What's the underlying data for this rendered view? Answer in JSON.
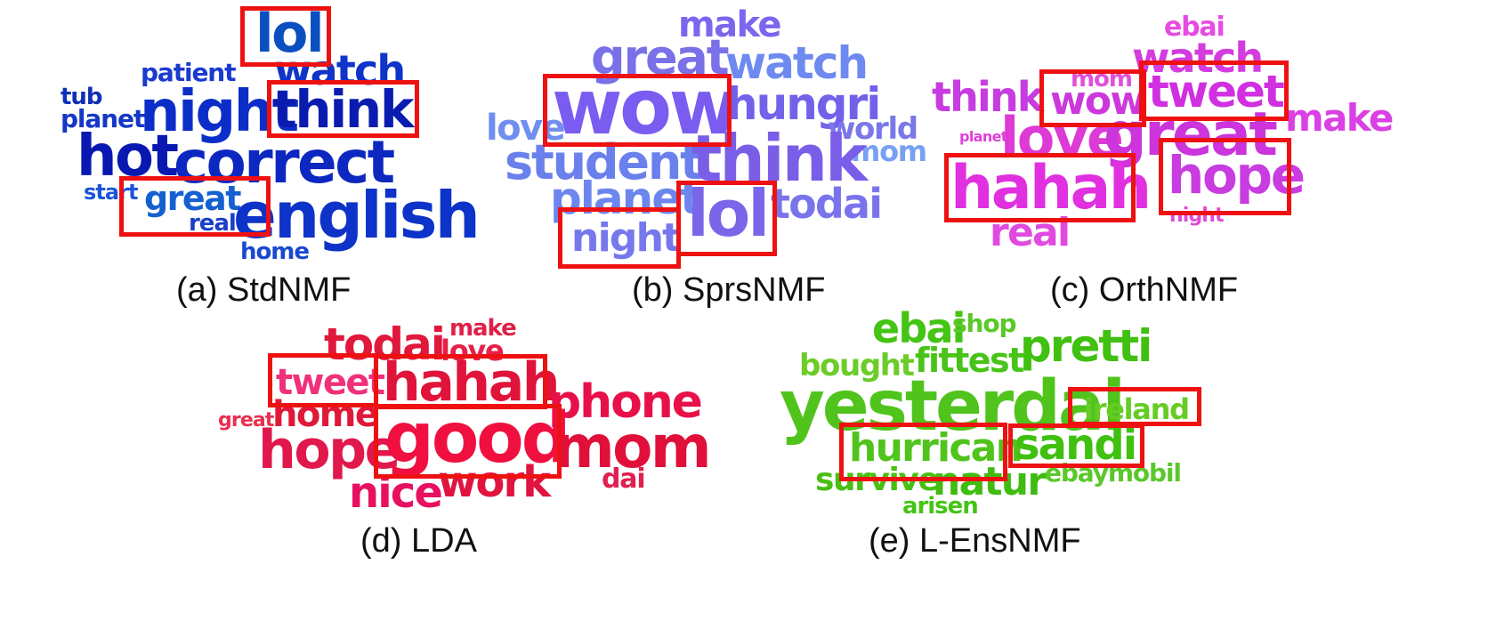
{
  "panels": [
    {
      "caption": "(a) StdNMF",
      "words": [
        {
          "text": "lol",
          "color": "#0a4fc0"
        },
        {
          "text": "watch",
          "color": "#1034c8"
        },
        {
          "text": "patient",
          "color": "#1a3ad0"
        },
        {
          "text": "tub",
          "color": "#0f2fb8"
        },
        {
          "text": "planet",
          "color": "#1437c8"
        },
        {
          "text": "night",
          "color": "#0c2ec8"
        },
        {
          "text": "think",
          "color": "#0a1cb0"
        },
        {
          "text": "hot",
          "color": "#0818b0"
        },
        {
          "text": "correct",
          "color": "#0d28c0"
        },
        {
          "text": "start",
          "color": "#1a55d8"
        },
        {
          "text": "great",
          "color": "#1560d0"
        },
        {
          "text": "real",
          "color": "#1a40c8"
        },
        {
          "text": "english",
          "color": "#0e33c8"
        },
        {
          "text": "home",
          "color": "#1a48d0"
        }
      ]
    },
    {
      "caption": "(b) SprsNMF",
      "words": [
        {
          "text": "make",
          "color": "#7b66ee"
        },
        {
          "text": "great",
          "color": "#7a70e8"
        },
        {
          "text": "watch",
          "color": "#6e8af0"
        },
        {
          "text": "wow",
          "color": "#7a5cf0"
        },
        {
          "text": "hungri",
          "color": "#7262ea"
        },
        {
          "text": "love",
          "color": "#6f8ef0"
        },
        {
          "text": "world",
          "color": "#7a78e8"
        },
        {
          "text": "mom",
          "color": "#78a0f2"
        },
        {
          "text": "student",
          "color": "#6a80ec"
        },
        {
          "text": "think",
          "color": "#7a5ee8"
        },
        {
          "text": "planet",
          "color": "#6c86ee"
        },
        {
          "text": "lol",
          "color": "#7a66e8"
        },
        {
          "text": "todai",
          "color": "#7a74ec"
        },
        {
          "text": "night",
          "color": "#7678ec"
        }
      ]
    },
    {
      "caption": "(c) OrthNMF",
      "words": [
        {
          "text": "ebai",
          "color": "#e84ae4"
        },
        {
          "text": "watch",
          "color": "#d43ce0"
        },
        {
          "text": "think",
          "color": "#c63ce0"
        },
        {
          "text": "mom",
          "color": "#e050d8"
        },
        {
          "text": "wow",
          "color": "#cc38dc"
        },
        {
          "text": "tweet",
          "color": "#d030e0"
        },
        {
          "text": "make",
          "color": "#da40e4"
        },
        {
          "text": "planet",
          "color": "#e040d8"
        },
        {
          "text": "love",
          "color": "#dd3ad6"
        },
        {
          "text": "great",
          "color": "#cc34dc"
        },
        {
          "text": "hahah",
          "color": "#e030e0"
        },
        {
          "text": "hope",
          "color": "#c83ce0"
        },
        {
          "text": "real",
          "color": "#e04ae0"
        },
        {
          "text": "night",
          "color": "#e04ad4"
        }
      ]
    },
    {
      "caption": "(d) LDA",
      "words": [
        {
          "text": "make",
          "color": "#e02048"
        },
        {
          "text": "todai",
          "color": "#e0183c"
        },
        {
          "text": "love",
          "color": "#e82048"
        },
        {
          "text": "tweet",
          "color": "#f0307a"
        },
        {
          "text": "hahah",
          "color": "#e0143a"
        },
        {
          "text": "phone",
          "color": "#e81048"
        },
        {
          "text": "great",
          "color": "#e83050"
        },
        {
          "text": "home",
          "color": "#e01838"
        },
        {
          "text": "hope",
          "color": "#e0184c"
        },
        {
          "text": "good",
          "color": "#f01040"
        },
        {
          "text": "mom",
          "color": "#e0103a"
        },
        {
          "text": "nice",
          "color": "#e81060"
        },
        {
          "text": "work",
          "color": "#e01440"
        },
        {
          "text": "dai",
          "color": "#e02050"
        }
      ]
    },
    {
      "caption": "(e) L-EnsNMF",
      "words": [
        {
          "text": "ebai",
          "color": "#44c414"
        },
        {
          "text": "shop",
          "color": "#5ac828"
        },
        {
          "text": "pretti",
          "color": "#40c010"
        },
        {
          "text": "bought",
          "color": "#6ccc28"
        },
        {
          "text": "fittest",
          "color": "#48c418"
        },
        {
          "text": "yesterdai",
          "color": "#50c41c"
        },
        {
          "text": "ireland",
          "color": "#66cc24"
        },
        {
          "text": "hurrican",
          "color": "#50c41c"
        },
        {
          "text": "sandi",
          "color": "#40c010"
        },
        {
          "text": "survive",
          "color": "#48c012"
        },
        {
          "text": "natur",
          "color": "#40bc10"
        },
        {
          "text": "ebaymobil",
          "color": "#5ac82a"
        },
        {
          "text": "arisen",
          "color": "#44c414"
        }
      ]
    }
  ]
}
